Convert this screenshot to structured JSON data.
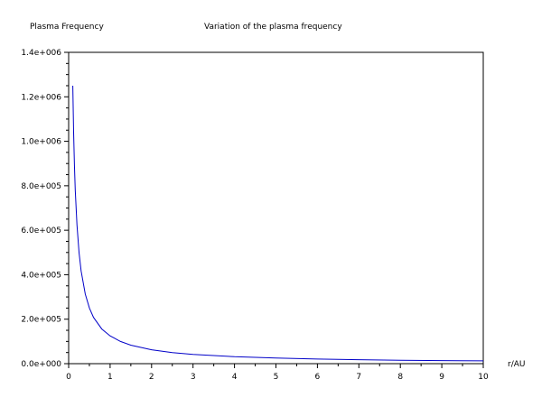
{
  "chart_data": {
    "type": "line",
    "title": "Variation of the plasma frequency",
    "ylabel": "Plasma Frequency",
    "xlabel": "r/AU",
    "xlim": [
      0,
      10
    ],
    "ylim": [
      0,
      1400000
    ],
    "xticks": [
      0,
      1,
      2,
      3,
      4,
      5,
      6,
      7,
      8,
      9,
      10
    ],
    "xtick_labels": [
      "0",
      "1",
      "2",
      "3",
      "4",
      "5",
      "6",
      "7",
      "8",
      "9",
      "10"
    ],
    "yticks": [
      0,
      200000,
      400000,
      600000,
      800000,
      1000000,
      1200000,
      1400000
    ],
    "ytick_labels": [
      "0.0e+000",
      "2.0e+005",
      "4.0e+005",
      "6.0e+005",
      "8.0e+005",
      "1.0e+006",
      "1.2e+006",
      "1.4e+006"
    ],
    "grid": false,
    "colors": {
      "line": "#0000c8",
      "axes": "#000000"
    },
    "series": [
      {
        "x": [
          0.1,
          0.12,
          0.14,
          0.16,
          0.2,
          0.25,
          0.3,
          0.4,
          0.5,
          0.6,
          0.8,
          1,
          1.25,
          1.5,
          2,
          2.5,
          3,
          4,
          5,
          6,
          7,
          8,
          9,
          10
        ],
        "values": [
          1250000,
          1040000,
          893000,
          781000,
          625000,
          500000,
          417000,
          313000,
          250000,
          208000,
          156000,
          125000,
          100000,
          83300,
          62500,
          50000,
          41700,
          31300,
          25000,
          20800,
          17900,
          15600,
          13900,
          12500
        ]
      }
    ]
  }
}
